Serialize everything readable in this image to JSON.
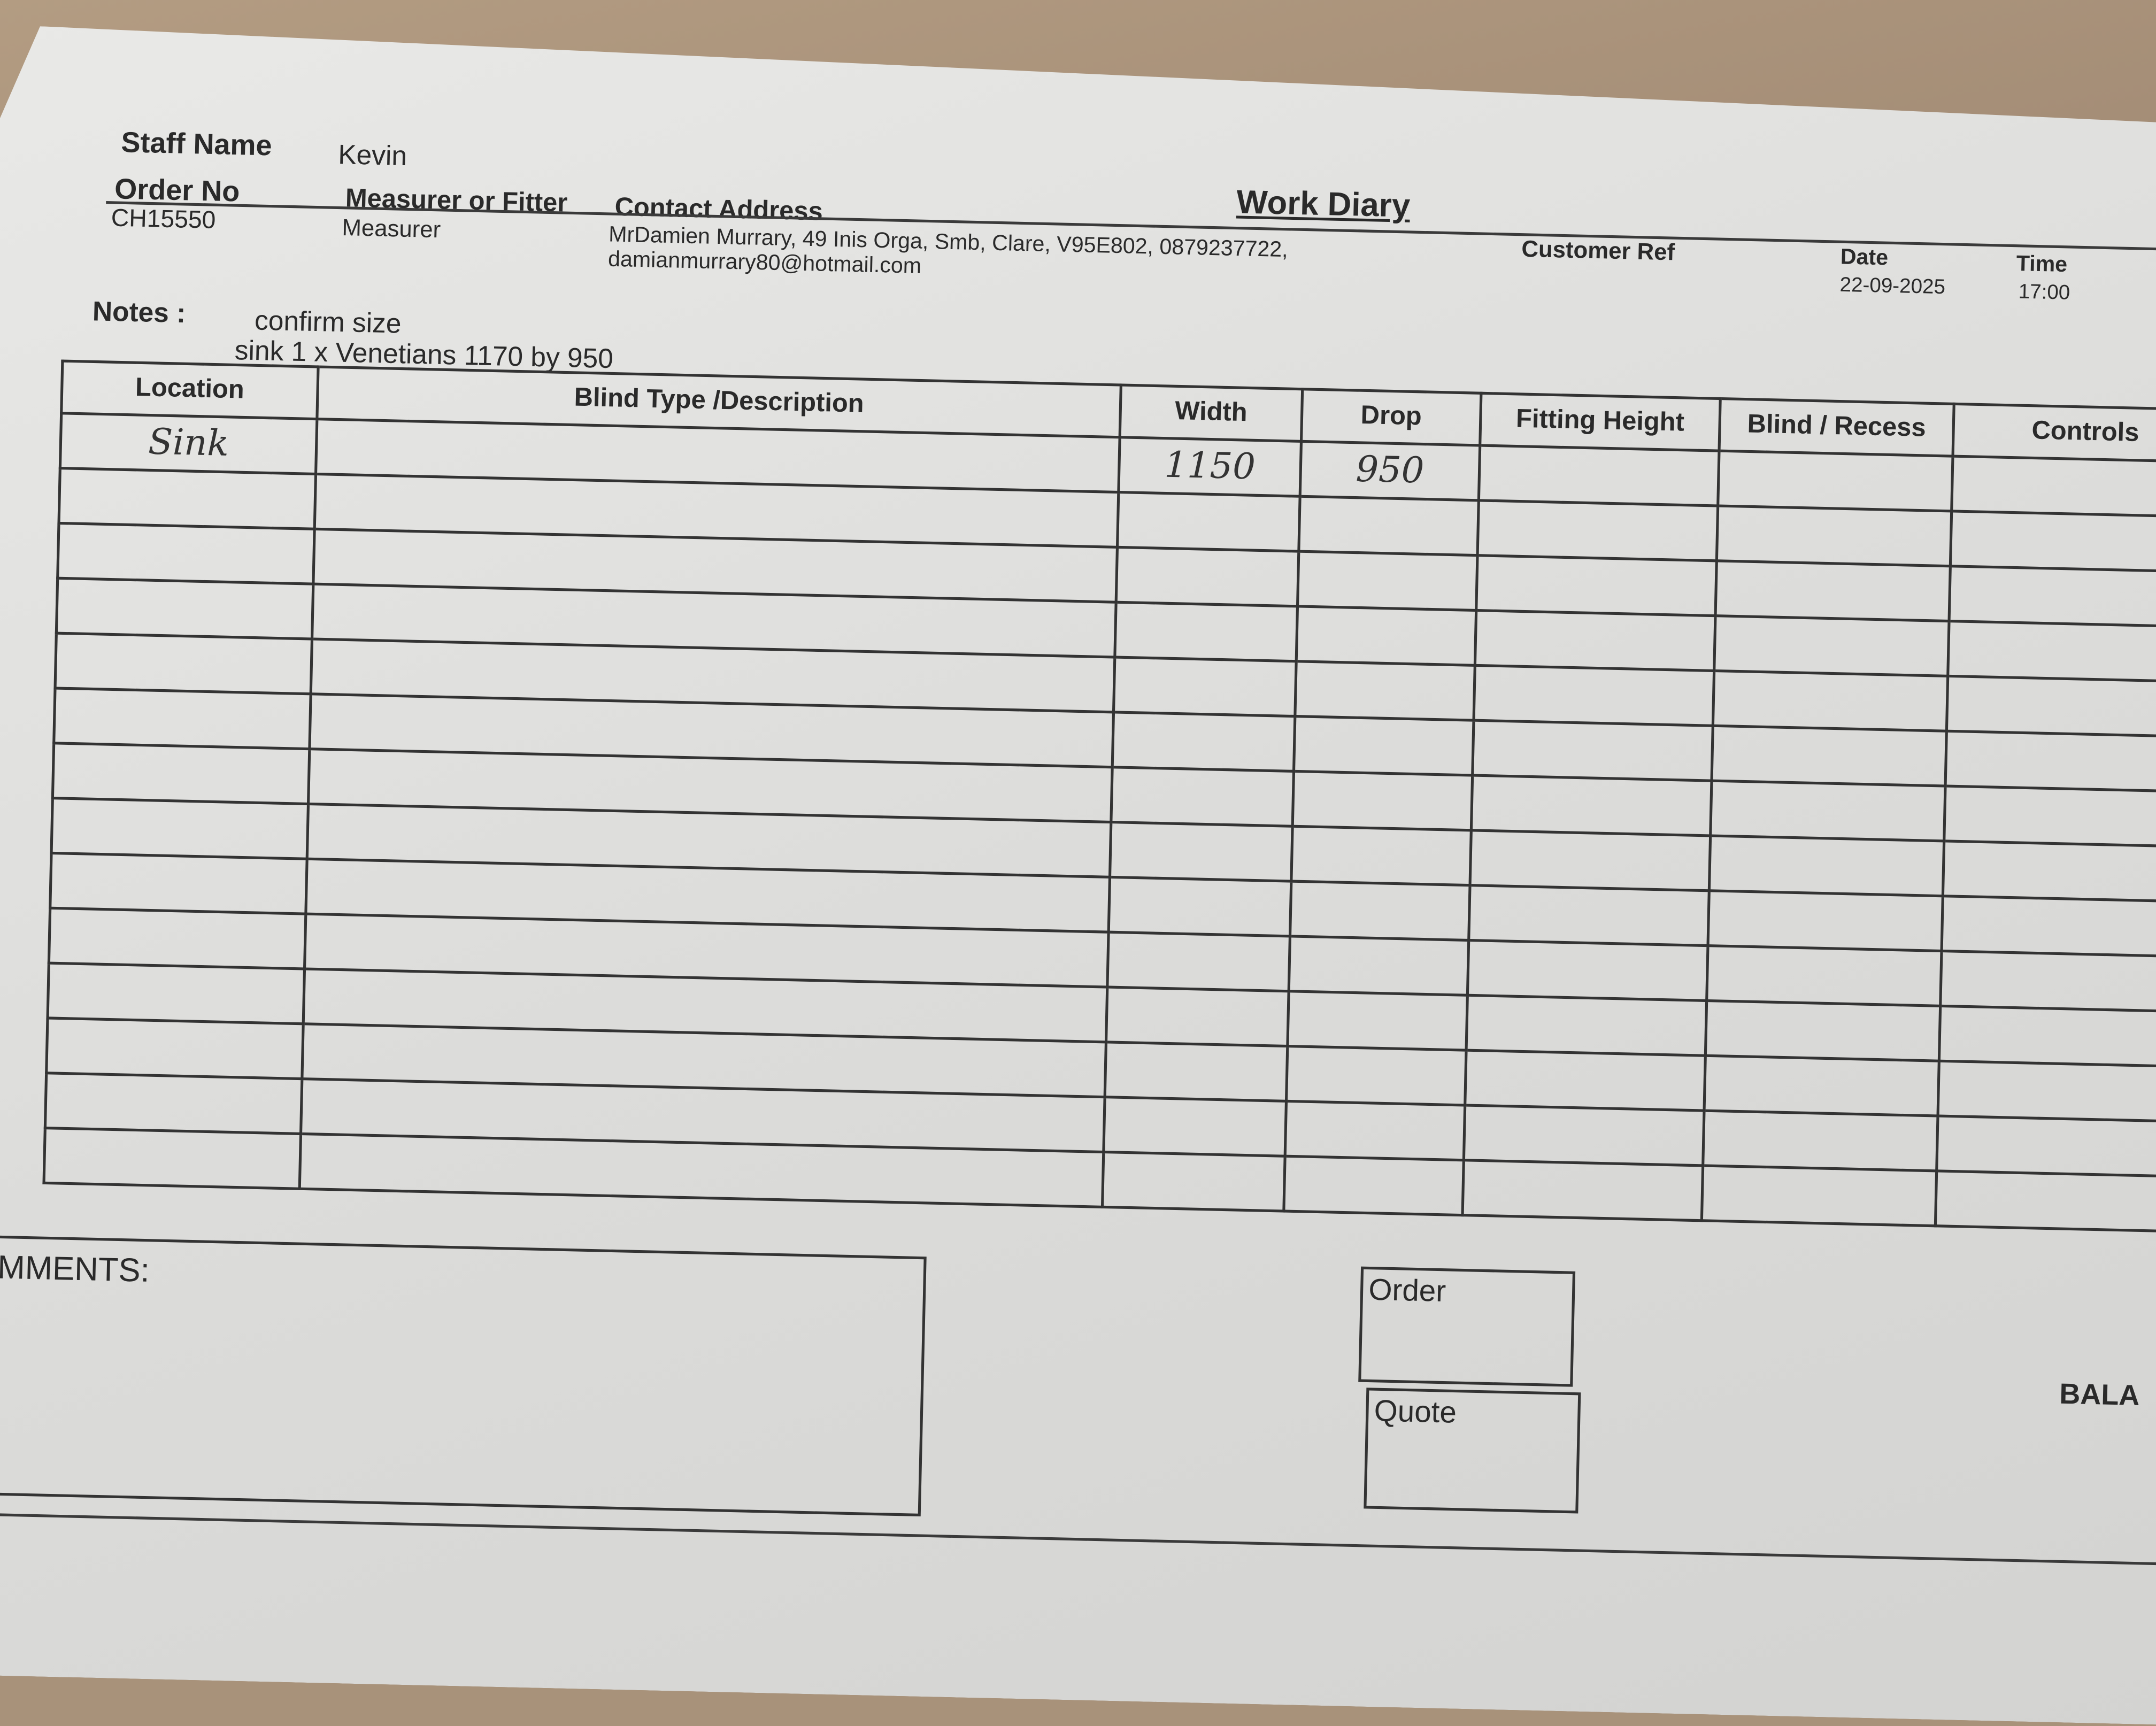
{
  "header": {
    "staff_name_label": "Staff Name",
    "staff_name": "Kevin",
    "order_no_label": "Order No",
    "order_no": "CH15550",
    "measurer_label": "Measurer or Fitter",
    "measurer": "Measurer",
    "contact_label": "Contact Address",
    "contact_line1": "MrDamien Murrary, 49 Inis Orga, Smb, Clare, V95E802, 0879237722,",
    "contact_line2": "damianmurrary80@hotmail.com",
    "title": "Work Diary",
    "customer_ref_label": "Customer Ref",
    "date_label": "Date",
    "date": "22-09-2025",
    "time_label": "Time",
    "time": "17:00"
  },
  "notes": {
    "label": "Notes :",
    "line1": "confirm size",
    "line2": "sink 1 x Venetians 1170 by 950"
  },
  "table": {
    "columns": [
      "Location",
      "Blind Type /Description",
      "Width",
      "Drop",
      "Fitting Height",
      "Blind / Recess",
      "Controls"
    ],
    "rows": [
      [
        "Sink",
        "",
        "1150",
        "950",
        "",
        "",
        ""
      ]
    ]
  },
  "footer": {
    "comments_label": "OMMENTS:",
    "order_label": "Order",
    "quote_label": "Quote",
    "balance_label": "BALA"
  }
}
